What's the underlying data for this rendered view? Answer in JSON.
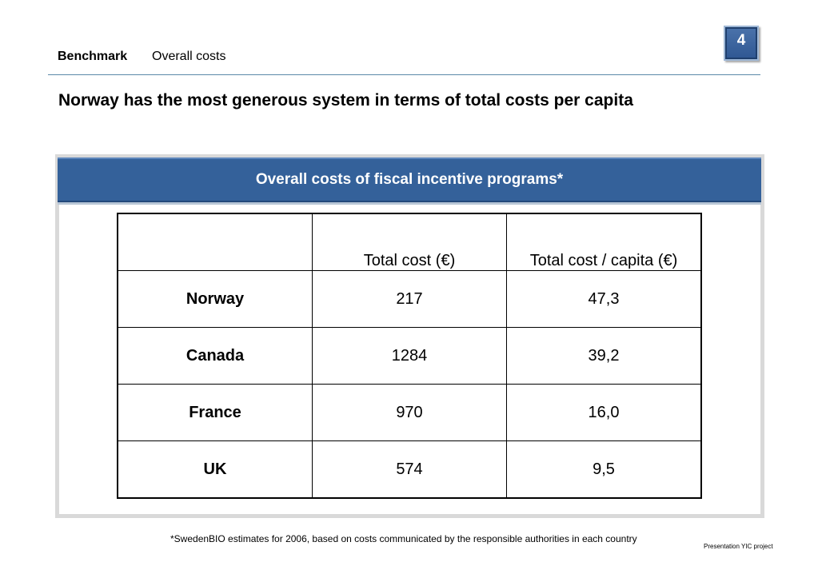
{
  "header": {
    "section": "Benchmark",
    "topic": "Overall costs",
    "page_number": "4"
  },
  "slide": {
    "title": "Norway has the most generous system in terms of total costs per capita"
  },
  "panel": {
    "title": "Overall costs of fiscal incentive programs*"
  },
  "table": {
    "columns": [
      "",
      "Total cost (€)",
      "Total cost / capita (€)"
    ],
    "rows": [
      {
        "country": "Norway",
        "total_cost": "217",
        "per_capita": "47,3"
      },
      {
        "country": "Canada",
        "total_cost": "1284",
        "per_capita": "39,2"
      },
      {
        "country": "France",
        "total_cost": "970",
        "per_capita": "16,0"
      },
      {
        "country": "UK",
        "total_cost": "574",
        "per_capita": "9,5"
      }
    ]
  },
  "footer": {
    "footnote": "*SwedenBIO estimates for 2006, based on costs communicated by the responsible authorities in each country",
    "credit": "Presentation YIC project"
  },
  "colors": {
    "accent_blue": "#34619a",
    "rule_blue": "#5b88a8",
    "panel_border": "#d9d9d9"
  }
}
